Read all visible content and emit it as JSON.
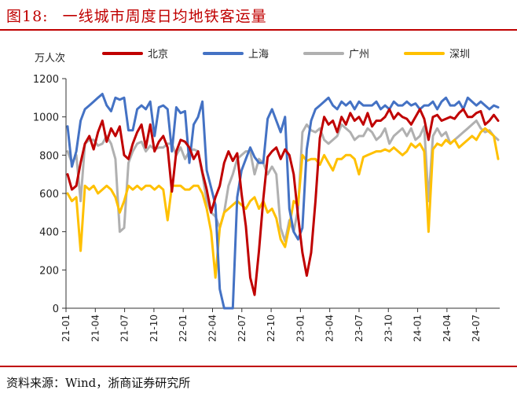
{
  "figure": {
    "number": "图18:",
    "title": "一线城市周度日均地铁客运量",
    "source": "资料来源：Wind，浙商证券研究所"
  },
  "chart_data": {
    "type": "line",
    "ylabel": "万人次",
    "ylim": [
      0,
      1200
    ],
    "yticks": [
      "0",
      "200",
      "400",
      "600",
      "800",
      "1000",
      "1200"
    ],
    "xticks": [
      "21-01",
      "21-04",
      "21-07",
      "21-10",
      "22-01",
      "22-04",
      "22-07",
      "22-10",
      "23-01",
      "23-04",
      "23-07",
      "23-10",
      "24-01",
      "24-04",
      "24-07"
    ],
    "legend_position": "top",
    "series": [
      {
        "name": "北京",
        "color": "#c00000",
        "values": [
          700,
          620,
          640,
          760,
          860,
          900,
          830,
          920,
          980,
          870,
          940,
          900,
          950,
          800,
          780,
          860,
          920,
          960,
          840,
          960,
          820,
          870,
          900,
          840,
          610,
          820,
          880,
          870,
          840,
          780,
          820,
          710,
          620,
          500,
          580,
          640,
          760,
          820,
          770,
          810,
          600,
          430,
          160,
          70,
          300,
          570,
          790,
          820,
          840,
          780,
          830,
          800,
          700,
          480,
          290,
          170,
          290,
          560,
          890,
          1000,
          960,
          980,
          920,
          1000,
          960,
          1020,
          980,
          1000,
          960,
          1020,
          950,
          980,
          980,
          1000,
          1040,
          990,
          1020,
          1000,
          990,
          960,
          1000,
          1040,
          990,
          880,
          1000,
          1010,
          980,
          990,
          1000,
          990,
          1020,
          1040,
          1000,
          1000,
          1020,
          1030,
          960,
          980,
          1010,
          980
        ]
      },
      {
        "name": "上海",
        "color": "#4472c4",
        "values": [
          950,
          740,
          820,
          980,
          1040,
          1060,
          1080,
          1100,
          1120,
          1060,
          1030,
          1100,
          1090,
          1100,
          930,
          930,
          1040,
          1060,
          1040,
          1080,
          900,
          1050,
          1060,
          1040,
          820,
          1050,
          1020,
          1030,
          760,
          960,
          1000,
          1080,
          720,
          630,
          540,
          100,
          0,
          0,
          0,
          580,
          720,
          780,
          840,
          790,
          760,
          760,
          990,
          1040,
          980,
          920,
          1000,
          520,
          400,
          360,
          420,
          830,
          980,
          1040,
          1060,
          1080,
          1100,
          1060,
          1040,
          1080,
          1060,
          1080,
          1040,
          1080,
          1060,
          1060,
          1060,
          1080,
          1040,
          1060,
          1040,
          1080,
          1060,
          1060,
          1080,
          1060,
          1070,
          1040,
          1060,
          1060,
          1080,
          1040,
          1080,
          1100,
          1060,
          1060,
          1080,
          1040,
          1100,
          1080,
          1060,
          1080,
          1060,
          1040,
          1060,
          1050
        ]
      },
      {
        "name": "广州",
        "color": "#b0b0b0",
        "values": [
          820,
          760,
          800,
          560,
          860,
          880,
          880,
          850,
          860,
          900,
          860,
          780,
          400,
          420,
          760,
          820,
          860,
          870,
          820,
          850,
          830,
          840,
          840,
          860,
          860,
          800,
          840,
          780,
          820,
          830,
          820,
          700,
          560,
          500,
          480,
          420,
          500,
          640,
          700,
          780,
          800,
          820,
          820,
          700,
          780,
          760,
          700,
          740,
          700,
          420,
          350,
          460,
          400,
          520,
          920,
          960,
          930,
          920,
          940,
          880,
          860,
          880,
          900,
          960,
          940,
          920,
          880,
          900,
          900,
          940,
          920,
          880,
          900,
          940,
          860,
          900,
          920,
          940,
          900,
          940,
          880,
          900,
          950,
          560,
          900,
          940,
          900,
          920,
          860,
          880,
          900,
          920,
          940,
          960,
          980,
          940,
          920,
          930,
          900,
          880
        ]
      },
      {
        "name": "深圳",
        "color": "#ffc000",
        "values": [
          600,
          560,
          580,
          300,
          640,
          620,
          640,
          600,
          620,
          640,
          620,
          580,
          500,
          560,
          640,
          620,
          640,
          620,
          640,
          640,
          620,
          640,
          620,
          460,
          640,
          640,
          640,
          620,
          620,
          640,
          640,
          600,
          520,
          400,
          160,
          420,
          500,
          520,
          540,
          560,
          540,
          520,
          560,
          580,
          520,
          560,
          500,
          520,
          470,
          360,
          320,
          430,
          560,
          540,
          800,
          770,
          780,
          780,
          750,
          800,
          760,
          720,
          780,
          780,
          800,
          800,
          780,
          700,
          790,
          800,
          810,
          820,
          820,
          830,
          820,
          840,
          820,
          800,
          820,
          860,
          840,
          860,
          820,
          400,
          830,
          860,
          850,
          880,
          860,
          880,
          840,
          860,
          880,
          900,
          880,
          920,
          940,
          920,
          900,
          780
        ]
      }
    ]
  }
}
